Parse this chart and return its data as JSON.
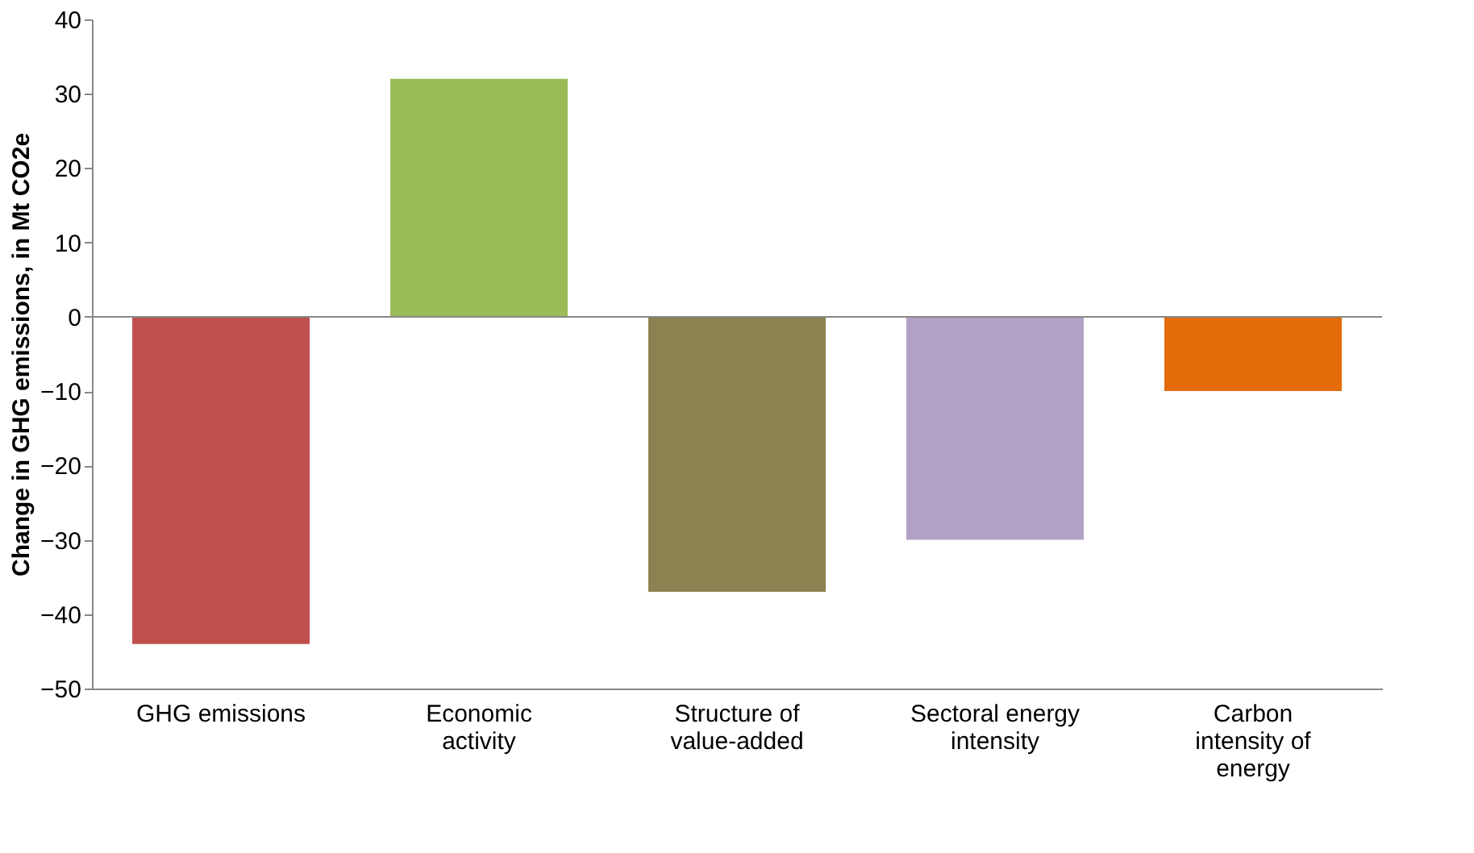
{
  "chart_data": {
    "type": "bar",
    "ylabel": "Change in GHG emissions, in Mt CO2e",
    "categories": [
      "GHG emissions",
      "Economic\nactivity",
      "Structure of\nvalue-added",
      "Sectoral energy\nintensity",
      "Carbon\nintensity of\nenergy"
    ],
    "values": [
      -44,
      32,
      -37,
      -30,
      -10
    ],
    "colors": [
      "#c0504d",
      "#9bbb59",
      "#8c8150",
      "#b2a1c7",
      "#e46c0a"
    ],
    "ylim": [
      -50,
      40
    ],
    "yticks": [
      -50,
      -40,
      -30,
      -20,
      -10,
      0,
      10,
      20,
      30,
      40
    ],
    "grid": false,
    "ref_lines": [
      {
        "axis": "y",
        "value": 0,
        "color": "#888888"
      }
    ]
  }
}
